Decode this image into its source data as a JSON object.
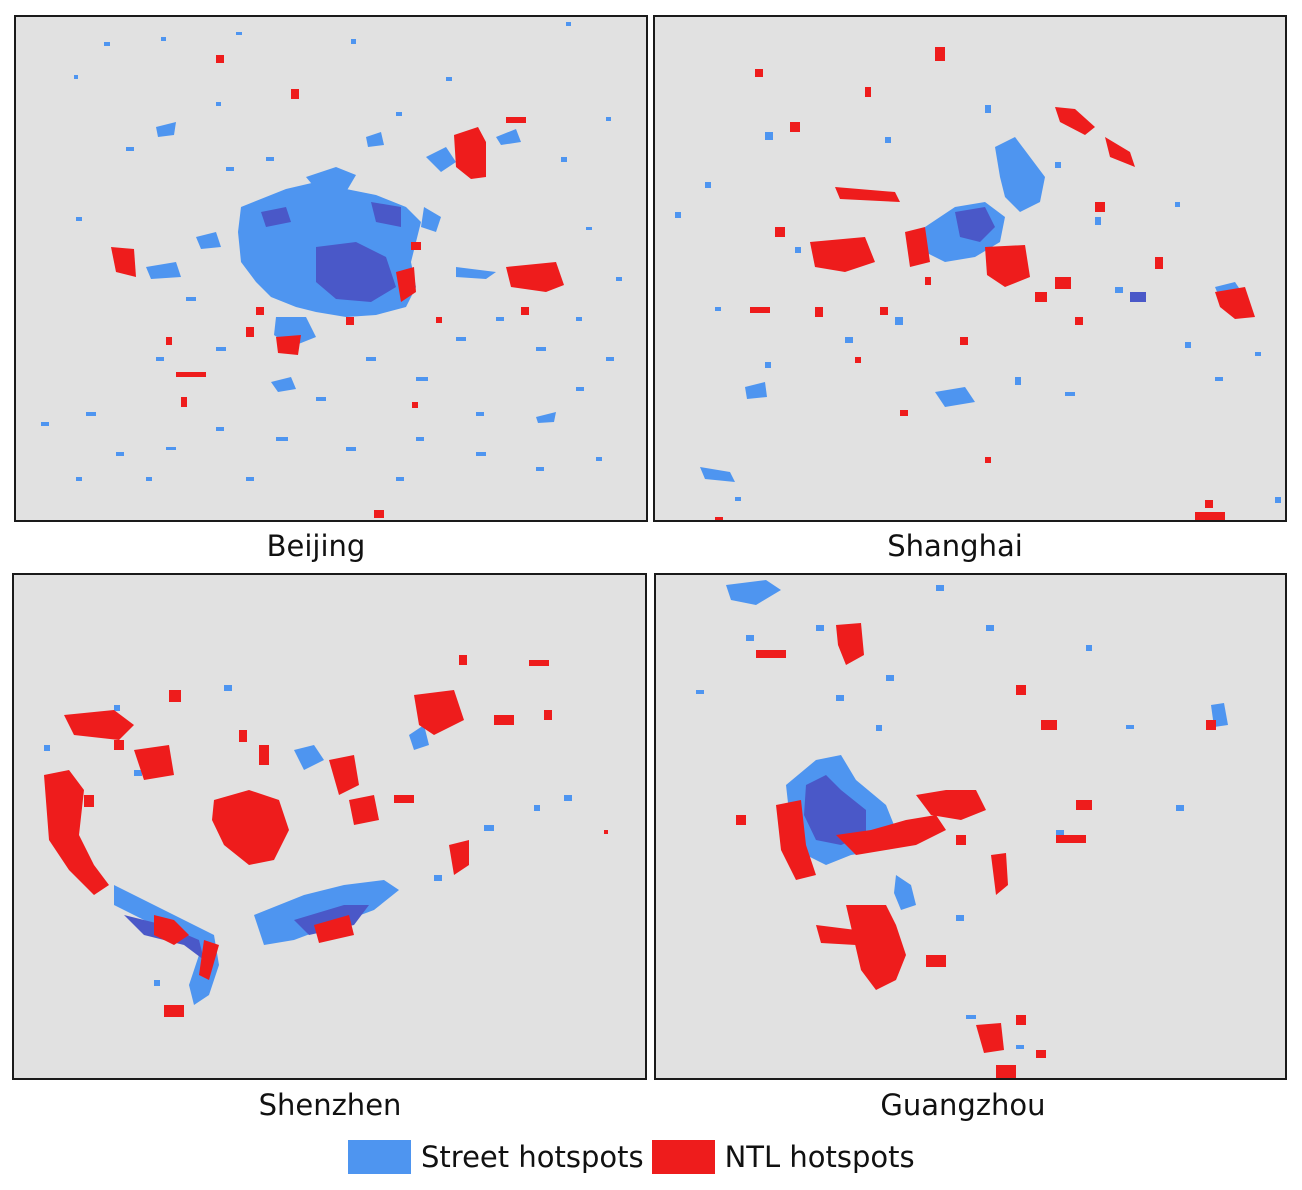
{
  "panels": {
    "beijing": {
      "caption": "Beijing"
    },
    "shanghai": {
      "caption": "Shanghai"
    },
    "shenzhen": {
      "caption": "Shenzhen"
    },
    "guangzhou": {
      "caption": "Guangzhou"
    }
  },
  "legend": {
    "street_label": "Street hotspots",
    "ntl_label": "NTL hotspots"
  },
  "colors": {
    "background": "#e1e1e1",
    "street_hotspots": "#4e95f0",
    "ntl_hotspots": "#ee1c1c",
    "overlap": "#4a58c8"
  }
}
